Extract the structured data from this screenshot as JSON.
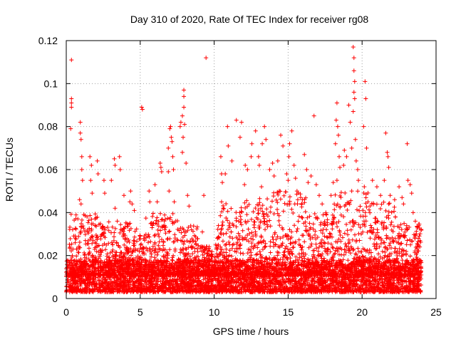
{
  "chart_data": {
    "type": "scatter",
    "title": "Day 310 of 2020, Rate Of TEC Index for receiver rg08",
    "xlabel": "GPS time / hours",
    "ylabel": "ROTI / TECUs",
    "xlim": [
      0,
      25
    ],
    "ylim": [
      0,
      0.12
    ],
    "xticks": [
      0,
      5,
      10,
      15,
      20,
      25
    ],
    "yticks": [
      0,
      0.02,
      0.04,
      0.06,
      0.08,
      0.1,
      0.12
    ],
    "xtick_labels": [
      "0",
      "5",
      "10",
      "15",
      "20",
      "25"
    ],
    "ytick_labels": [
      "0",
      "0.02",
      "0.04",
      "0.06",
      "0.08",
      "0.1",
      "0.12"
    ],
    "grid": true,
    "marker": "plus",
    "color": "#ff0000",
    "points": [
      [
        0.35,
        0.111
      ],
      [
        0.35,
        0.093
      ],
      [
        0.35,
        0.091
      ],
      [
        0.35,
        0.089
      ],
      [
        0.3,
        0.079
      ],
      [
        0.95,
        0.082
      ],
      [
        0.95,
        0.077
      ],
      [
        1.0,
        0.074
      ],
      [
        1.05,
        0.066
      ],
      [
        1.05,
        0.06
      ],
      [
        1.1,
        0.055
      ],
      [
        0.9,
        0.046
      ],
      [
        1.0,
        0.044
      ],
      [
        0.6,
        0.026
      ],
      [
        0.7,
        0.023
      ],
      [
        1.6,
        0.066
      ],
      [
        1.7,
        0.062
      ],
      [
        1.65,
        0.055
      ],
      [
        1.75,
        0.049
      ],
      [
        2.1,
        0.064
      ],
      [
        2.15,
        0.058
      ],
      [
        2.55,
        0.055
      ],
      [
        2.6,
        0.049
      ],
      [
        3.05,
        0.055
      ],
      [
        3.25,
        0.065
      ],
      [
        3.3,
        0.062
      ],
      [
        3.6,
        0.066
      ],
      [
        3.65,
        0.06
      ],
      [
        3.3,
        0.042
      ],
      [
        3.45,
        0.036
      ],
      [
        3.9,
        0.048
      ],
      [
        4.3,
        0.045
      ],
      [
        4.35,
        0.05
      ],
      [
        4.45,
        0.044
      ],
      [
        4.6,
        0.041
      ],
      [
        5.1,
        0.089
      ],
      [
        5.15,
        0.088
      ],
      [
        5.6,
        0.05
      ],
      [
        5.65,
        0.045
      ],
      [
        5.9,
        0.035
      ],
      [
        6.0,
        0.053
      ],
      [
        6.15,
        0.045
      ],
      [
        6.35,
        0.063
      ],
      [
        6.4,
        0.061
      ],
      [
        6.45,
        0.059
      ],
      [
        6.9,
        0.059
      ],
      [
        6.9,
        0.07
      ],
      [
        7.0,
        0.079
      ],
      [
        7.05,
        0.08
      ],
      [
        7.1,
        0.075
      ],
      [
        7.15,
        0.073
      ],
      [
        7.2,
        0.066
      ],
      [
        7.25,
        0.06
      ],
      [
        6.95,
        0.05
      ],
      [
        7.3,
        0.045
      ],
      [
        7.7,
        0.08
      ],
      [
        7.75,
        0.082
      ],
      [
        7.85,
        0.085
      ],
      [
        7.95,
        0.097
      ],
      [
        7.95,
        0.094
      ],
      [
        7.95,
        0.089
      ],
      [
        8.0,
        0.081
      ],
      [
        7.9,
        0.075
      ],
      [
        7.85,
        0.068
      ],
      [
        8.1,
        0.063
      ],
      [
        8.2,
        0.048
      ],
      [
        8.3,
        0.043
      ],
      [
        9.2,
        0.031
      ],
      [
        9.3,
        0.048
      ],
      [
        9.45,
        0.112
      ],
      [
        9.6,
        0.022
      ],
      [
        10.1,
        0.025
      ],
      [
        10.45,
        0.066
      ],
      [
        10.5,
        0.058
      ],
      [
        10.55,
        0.054
      ],
      [
        10.75,
        0.058
      ],
      [
        10.9,
        0.08
      ],
      [
        10.95,
        0.071
      ],
      [
        10.5,
        0.045
      ],
      [
        11.2,
        0.064
      ],
      [
        11.5,
        0.083
      ],
      [
        11.75,
        0.075
      ],
      [
        11.85,
        0.082
      ],
      [
        12.1,
        0.062
      ],
      [
        12.25,
        0.06
      ],
      [
        12.05,
        0.053
      ],
      [
        12.5,
        0.066
      ],
      [
        12.55,
        0.072
      ],
      [
        12.8,
        0.078
      ],
      [
        13.0,
        0.066
      ],
      [
        13.05,
        0.062
      ],
      [
        13.25,
        0.072
      ],
      [
        13.4,
        0.08
      ],
      [
        13.5,
        0.074
      ],
      [
        13.2,
        0.052
      ],
      [
        13.75,
        0.06
      ],
      [
        13.95,
        0.063
      ],
      [
        14.05,
        0.057
      ],
      [
        14.3,
        0.064
      ],
      [
        14.5,
        0.076
      ],
      [
        14.65,
        0.071
      ],
      [
        14.4,
        0.05
      ],
      [
        14.9,
        0.058
      ],
      [
        15.0,
        0.055
      ],
      [
        15.05,
        0.066
      ],
      [
        15.1,
        0.072
      ],
      [
        15.25,
        0.078
      ],
      [
        15.4,
        0.062
      ],
      [
        15.5,
        0.056
      ],
      [
        15.6,
        0.05
      ],
      [
        15.65,
        0.046
      ],
      [
        15.45,
        0.044
      ],
      [
        15.85,
        0.047
      ],
      [
        16.1,
        0.067
      ],
      [
        16.25,
        0.06
      ],
      [
        16.35,
        0.054
      ],
      [
        16.55,
        0.057
      ],
      [
        16.75,
        0.085
      ],
      [
        16.9,
        0.053
      ],
      [
        17.1,
        0.048
      ],
      [
        17.3,
        0.044
      ],
      [
        17.55,
        0.04
      ],
      [
        17.9,
        0.048
      ],
      [
        18.05,
        0.054
      ],
      [
        18.2,
        0.072
      ],
      [
        18.25,
        0.083
      ],
      [
        18.3,
        0.091
      ],
      [
        18.35,
        0.08
      ],
      [
        18.4,
        0.076
      ],
      [
        18.45,
        0.066
      ],
      [
        18.5,
        0.061
      ],
      [
        18.3,
        0.055
      ],
      [
        18.75,
        0.062
      ],
      [
        18.8,
        0.069
      ],
      [
        18.95,
        0.066
      ],
      [
        19.1,
        0.09
      ],
      [
        19.2,
        0.082
      ],
      [
        19.3,
        0.07
      ],
      [
        19.4,
        0.117
      ],
      [
        19.45,
        0.112
      ],
      [
        19.45,
        0.106
      ],
      [
        19.5,
        0.101
      ],
      [
        19.45,
        0.096
      ],
      [
        19.5,
        0.093
      ],
      [
        19.4,
        0.087
      ],
      [
        19.55,
        0.074
      ],
      [
        19.6,
        0.064
      ],
      [
        19.7,
        0.06
      ],
      [
        19.75,
        0.055
      ],
      [
        19.3,
        0.05
      ],
      [
        20.1,
        0.08
      ],
      [
        20.2,
        0.101
      ],
      [
        20.25,
        0.093
      ],
      [
        20.3,
        0.07
      ],
      [
        20.15,
        0.052
      ],
      [
        20.4,
        0.045
      ],
      [
        20.7,
        0.055
      ],
      [
        21.0,
        0.052
      ],
      [
        21.25,
        0.048
      ],
      [
        21.5,
        0.055
      ],
      [
        21.6,
        0.077
      ],
      [
        21.7,
        0.068
      ],
      [
        21.75,
        0.066
      ],
      [
        21.8,
        0.061
      ],
      [
        21.9,
        0.048
      ],
      [
        22.2,
        0.046
      ],
      [
        22.5,
        0.052
      ],
      [
        22.7,
        0.047
      ],
      [
        22.8,
        0.044
      ],
      [
        23.05,
        0.072
      ],
      [
        23.1,
        0.055
      ],
      [
        23.25,
        0.053
      ],
      [
        23.35,
        0.049
      ],
      [
        23.45,
        0.04
      ],
      [
        23.6,
        0.036
      ],
      [
        23.8,
        0.028
      ],
      [
        23.9,
        0.024
      ]
    ],
    "dense_band": {
      "x_range": [
        0,
        24
      ],
      "y_floor": 0.003,
      "y_core_max": 0.018,
      "y_spike_max": 0.04,
      "bursts": [
        [
          0.2,
          2.4,
          0.04
        ],
        [
          2.4,
          3.9,
          0.038
        ],
        [
          3.9,
          5.3,
          0.036
        ],
        [
          5.3,
          7.6,
          0.04
        ],
        [
          7.6,
          9.0,
          0.035
        ],
        [
          9.0,
          10.2,
          0.025
        ],
        [
          10.2,
          12.0,
          0.045
        ],
        [
          12.0,
          14.0,
          0.047
        ],
        [
          14.0,
          16.2,
          0.05
        ],
        [
          16.2,
          18.0,
          0.04
        ],
        [
          18.0,
          20.5,
          0.05
        ],
        [
          20.5,
          22.3,
          0.045
        ],
        [
          22.3,
          24.0,
          0.035
        ]
      ]
    }
  }
}
